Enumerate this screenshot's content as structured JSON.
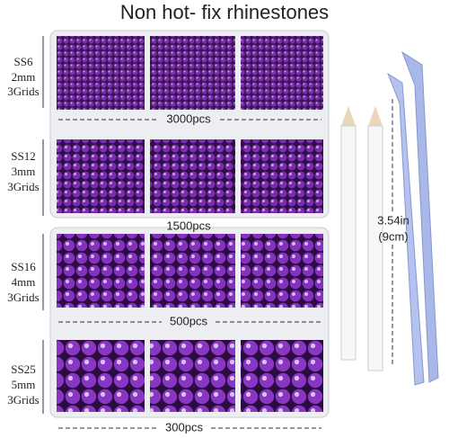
{
  "title": "Non hot- fix rhinestones",
  "sizes": [
    {
      "name": "SS6",
      "mm": "2mm",
      "grids": "3Grids",
      "count": "3000pcs"
    },
    {
      "name": "SS12",
      "mm": "3mm",
      "grids": "3Grids",
      "count": "1500pcs"
    },
    {
      "name": "SS16",
      "mm": "4mm",
      "grids": "3Grids",
      "count": "500pcs"
    },
    {
      "name": "SS25",
      "mm": "5mm",
      "grids": "3Grids",
      "count": "300pcs"
    }
  ],
  "measure": {
    "inches": "3.54in",
    "cm": "(9cm)"
  }
}
